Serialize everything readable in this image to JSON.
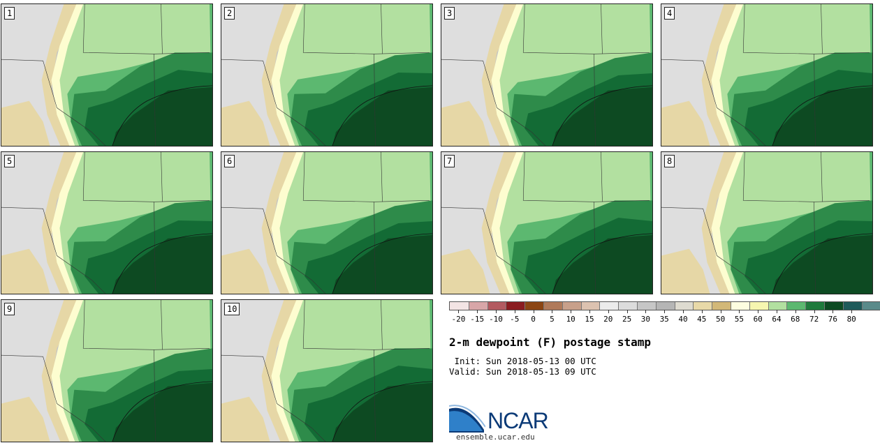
{
  "panels": [
    {
      "label": "1"
    },
    {
      "label": "2"
    },
    {
      "label": "3"
    },
    {
      "label": "4"
    },
    {
      "label": "5"
    },
    {
      "label": "6"
    },
    {
      "label": "7"
    },
    {
      "label": "8"
    },
    {
      "label": "9"
    },
    {
      "label": "10"
    }
  ],
  "colorbar": {
    "ticks": [
      "-20",
      "-15",
      "-10",
      "-5",
      "0",
      "5",
      "10",
      "15",
      "20",
      "25",
      "30",
      "35",
      "40",
      "45",
      "50",
      "55",
      "60",
      "64",
      "68",
      "72",
      "76",
      "80"
    ],
    "colors": [
      "#f3e4e4",
      "#d8a6a8",
      "#b35a60",
      "#8a1c20",
      "#8b4513",
      "#b07a5a",
      "#c8a08a",
      "#dcc2b0",
      "#ececec",
      "#dcdcdc",
      "#c6c6c6",
      "#b5b5b5",
      "#dedbd0",
      "#e8d9a8",
      "#d2b878",
      "#fdfde0",
      "#f6f6b0",
      "#b2e0a0",
      "#5cb870",
      "#1f7a3c",
      "#0d4a22",
      "#1f5a5a",
      "#5a8a8a"
    ]
  },
  "map_colors": {
    "dry_grey": "#c4c4c4",
    "light_grey": "#dedede",
    "tan": "#e6d7a6",
    "pale_yellow": "#fdfdd0",
    "light_green": "#b2e0a0",
    "mid_green": "#5cb870",
    "green": "#2e8b4a",
    "dark_green": "#136b35",
    "darkest_green": "#0d4a22"
  },
  "title": "2-m dewpoint (F) postage stamp",
  "init": " Init: Sun 2018-05-13 00 UTC",
  "valid": "Valid: Sun 2018-05-13 09 UTC",
  "logo": {
    "text": "NCAR",
    "url": "ensemble.ucar.edu"
  }
}
